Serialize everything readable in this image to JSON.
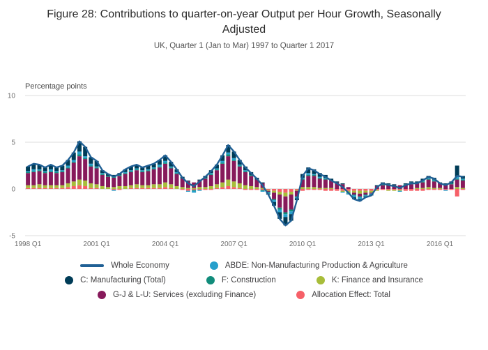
{
  "title": "Figure 28: Contributions to quarter-on-year Output per Hour Growth, Seasonally Adjusted",
  "subtitle": "UK, Quarter 1 (Jan to Mar) 1997 to Quarter 1 2017",
  "chart_data": {
    "type": "bar",
    "subtype": "stacked-bar-with-line-overlay",
    "title": "Figure 28: Contributions to quarter-on-year Output per Hour Growth, Seasonally Adjusted",
    "subtitle": "UK, Quarter 1 (Jan to Mar) 1997 to Quarter 1 2017",
    "ylabel": "Percentage points",
    "ylim": [
      -5,
      10
    ],
    "yticks": [
      10,
      5,
      0,
      -5
    ],
    "grid": "horizontal-light",
    "legend_position": "bottom",
    "categories": [
      "1998 Q1",
      "1998 Q2",
      "1998 Q3",
      "1998 Q4",
      "1999 Q1",
      "1999 Q2",
      "1999 Q3",
      "1999 Q4",
      "2000 Q1",
      "2000 Q2",
      "2000 Q3",
      "2000 Q4",
      "2001 Q1",
      "2001 Q2",
      "2001 Q3",
      "2001 Q4",
      "2002 Q1",
      "2002 Q2",
      "2002 Q3",
      "2002 Q4",
      "2003 Q1",
      "2003 Q2",
      "2003 Q3",
      "2003 Q4",
      "2004 Q1",
      "2004 Q2",
      "2004 Q3",
      "2004 Q4",
      "2005 Q1",
      "2005 Q2",
      "2005 Q3",
      "2005 Q4",
      "2006 Q1",
      "2006 Q2",
      "2006 Q3",
      "2006 Q4",
      "2007 Q1",
      "2007 Q2",
      "2007 Q3",
      "2007 Q4",
      "2008 Q1",
      "2008 Q2",
      "2008 Q3",
      "2008 Q4",
      "2009 Q1",
      "2009 Q2",
      "2009 Q3",
      "2009 Q4",
      "2010 Q1",
      "2010 Q2",
      "2010 Q3",
      "2010 Q4",
      "2011 Q1",
      "2011 Q2",
      "2011 Q3",
      "2011 Q4",
      "2012 Q1",
      "2012 Q2",
      "2012 Q3",
      "2012 Q4",
      "2013 Q1",
      "2013 Q2",
      "2013 Q3",
      "2013 Q4",
      "2014 Q1",
      "2014 Q2",
      "2014 Q3",
      "2014 Q4",
      "2015 Q1",
      "2015 Q2",
      "2015 Q3",
      "2015 Q4",
      "2016 Q1",
      "2016 Q2",
      "2016 Q3",
      "2016 Q4",
      "2017 Q1"
    ],
    "xticks": [
      {
        "i": 0,
        "label": "1998 Q1"
      },
      {
        "i": 12,
        "label": "2001 Q1"
      },
      {
        "i": 24,
        "label": "2004 Q1"
      },
      {
        "i": 36,
        "label": "2007 Q1"
      },
      {
        "i": 48,
        "label": "2010 Q1"
      },
      {
        "i": 60,
        "label": "2013 Q1"
      },
      {
        "i": 72,
        "label": "2016 Q1"
      }
    ],
    "series": [
      {
        "name": "Allocation Effect: Total",
        "color": "#F66068",
        "values": [
          0.1,
          0.1,
          0.1,
          0.1,
          0.1,
          0.1,
          0.1,
          0.2,
          0.3,
          0.4,
          0.3,
          0.1,
          0.1,
          0.0,
          0.0,
          -0.1,
          -0.1,
          0.0,
          0.1,
          0.1,
          0.1,
          0.1,
          0.1,
          0.1,
          0.2,
          0.1,
          0.0,
          -0.1,
          -0.2,
          -0.1,
          -0.1,
          -0.1,
          -0.1,
          0.1,
          0.2,
          0.3,
          0.2,
          0.1,
          -0.1,
          -0.1,
          -0.1,
          -0.1,
          -0.1,
          -0.2,
          -0.3,
          -0.4,
          -0.3,
          -0.1,
          -0.2,
          -0.1,
          -0.1,
          -0.1,
          -0.2,
          -0.2,
          -0.2,
          -0.2,
          -0.2,
          -0.2,
          -0.2,
          -0.2,
          -0.2,
          -0.1,
          -0.1,
          -0.1,
          -0.1,
          -0.1,
          -0.2,
          -0.2,
          -0.2,
          -0.2,
          -0.1,
          -0.1,
          -0.1,
          -0.1,
          -0.1,
          -0.8,
          -0.1
        ]
      },
      {
        "name": "K: Finance and Insurance",
        "color": "#A8BD3A",
        "values": [
          0.3,
          0.3,
          0.4,
          0.3,
          0.3,
          0.3,
          0.3,
          0.4,
          0.5,
          0.6,
          0.6,
          0.5,
          0.4,
          0.3,
          0.2,
          0.2,
          0.3,
          0.3,
          0.3,
          0.4,
          0.3,
          0.3,
          0.4,
          0.4,
          0.5,
          0.4,
          0.3,
          0.2,
          0.1,
          0.1,
          0.2,
          0.2,
          0.3,
          0.4,
          0.5,
          0.7,
          0.6,
          0.5,
          0.4,
          0.3,
          0.2,
          0.1,
          -0.1,
          -0.2,
          -0.3,
          -0.4,
          -0.3,
          -0.1,
          0.2,
          0.2,
          0.2,
          0.1,
          0.1,
          0.1,
          0.0,
          -0.1,
          -0.2,
          -0.2,
          -0.3,
          -0.2,
          -0.2,
          -0.1,
          0.0,
          -0.1,
          -0.1,
          -0.1,
          0.0,
          0.0,
          0.1,
          0.1,
          0.2,
          0.1,
          0.1,
          0.0,
          0.0,
          0.2,
          0.1
        ]
      },
      {
        "name": "G-J & L-U: Services (excluding Finance)",
        "color": "#871A5B",
        "values": [
          1.3,
          1.4,
          1.4,
          1.3,
          1.4,
          1.3,
          1.4,
          1.6,
          2.0,
          2.5,
          2.3,
          1.8,
          1.7,
          1.2,
          1.1,
          1.0,
          1.1,
          1.3,
          1.4,
          1.5,
          1.4,
          1.5,
          1.6,
          1.8,
          2.0,
          1.7,
          1.3,
          0.9,
          0.7,
          0.6,
          0.7,
          0.9,
          1.2,
          1.5,
          2.0,
          2.5,
          2.2,
          1.8,
          1.4,
          1.1,
          0.8,
          0.5,
          -0.1,
          -0.7,
          -1.4,
          -1.7,
          -1.6,
          -0.6,
          0.8,
          1.2,
          1.2,
          1.0,
          0.9,
          0.8,
          0.7,
          0.5,
          0.2,
          -0.2,
          -0.3,
          -0.2,
          -0.1,
          0.3,
          0.4,
          0.4,
          0.4,
          0.4,
          0.4,
          0.5,
          0.5,
          0.6,
          0.8,
          0.7,
          0.5,
          0.5,
          0.5,
          0.8,
          0.8
        ]
      },
      {
        "name": "F: Construction",
        "color": "#118C7B",
        "values": [
          0.1,
          0.1,
          0.1,
          0.1,
          0.1,
          0.1,
          0.1,
          0.1,
          0.1,
          0.2,
          0.1,
          0.1,
          0.1,
          0.1,
          0.1,
          0.1,
          0.1,
          0.1,
          0.1,
          0.1,
          0.1,
          0.1,
          0.1,
          0.1,
          0.1,
          0.1,
          0.1,
          0.0,
          0.0,
          -0.1,
          0.0,
          0.1,
          0.1,
          0.1,
          0.1,
          0.2,
          0.1,
          0.1,
          0.1,
          0.1,
          0.0,
          -0.1,
          -0.1,
          -0.1,
          -0.2,
          -0.2,
          -0.2,
          -0.1,
          0.1,
          0.1,
          0.1,
          0.1,
          0.1,
          0.0,
          0.0,
          0.0,
          -0.1,
          -0.1,
          -0.1,
          -0.1,
          0.0,
          0.0,
          0.1,
          0.1,
          0.0,
          0.0,
          0.1,
          0.1,
          0.1,
          0.1,
          0.1,
          0.1,
          0.0,
          0.0,
          0.1,
          0.1,
          0.1
        ]
      },
      {
        "name": "ABDE: Non-Manufacturing Production & Agriculture",
        "color": "#27A0CC",
        "values": [
          0.1,
          0.2,
          0.1,
          0.1,
          0.2,
          0.1,
          0.1,
          0.2,
          0.2,
          0.3,
          0.2,
          0.2,
          0.1,
          0.1,
          0.0,
          -0.1,
          0.0,
          0.1,
          0.1,
          0.1,
          0.1,
          0.1,
          0.1,
          0.2,
          0.2,
          0.1,
          0.1,
          0.0,
          -0.1,
          -0.2,
          -0.1,
          0.0,
          0.1,
          0.1,
          0.2,
          0.2,
          0.2,
          0.1,
          0.1,
          0.0,
          0.0,
          -0.1,
          -0.1,
          -0.2,
          -0.3,
          -0.3,
          -0.3,
          -0.1,
          0.1,
          0.2,
          0.1,
          0.1,
          0.1,
          0.0,
          0.0,
          -0.1,
          -0.1,
          -0.2,
          -0.2,
          -0.1,
          -0.1,
          0.0,
          0.1,
          0.0,
          0.0,
          -0.1,
          0.0,
          0.1,
          0.0,
          0.1,
          0.1,
          0.1,
          0.0,
          -0.1,
          0.0,
          0.2,
          0.1
        ]
      },
      {
        "name": "C: Manufacturing (Total)",
        "color": "#003C57",
        "values": [
          0.5,
          0.6,
          0.5,
          0.4,
          0.5,
          0.4,
          0.5,
          0.6,
          0.8,
          1.1,
          1.0,
          0.7,
          0.6,
          0.3,
          0.2,
          0.2,
          0.2,
          0.3,
          0.4,
          0.4,
          0.3,
          0.4,
          0.4,
          0.5,
          0.6,
          0.5,
          0.3,
          0.2,
          0.1,
          0.0,
          0.1,
          0.2,
          0.3,
          0.4,
          0.6,
          0.8,
          0.7,
          0.5,
          0.4,
          0.3,
          0.2,
          0.1,
          -0.1,
          -0.4,
          -0.7,
          -0.9,
          -0.7,
          -0.2,
          0.4,
          0.6,
          0.5,
          0.4,
          0.3,
          0.2,
          0.1,
          0.1,
          0.0,
          -0.2,
          -0.2,
          -0.1,
          -0.1,
          0.1,
          0.1,
          0.1,
          0.1,
          0.0,
          0.1,
          0.1,
          0.1,
          0.2,
          0.2,
          0.2,
          0.1,
          0.1,
          0.2,
          1.2,
          0.3
        ]
      }
    ],
    "line_series": {
      "name": "Whole Economy",
      "color": "#206095",
      "values": [
        2.4,
        2.7,
        2.6,
        2.3,
        2.6,
        2.3,
        2.5,
        3.1,
        3.9,
        5.1,
        4.5,
        3.4,
        3.0,
        2.0,
        1.6,
        1.3,
        1.6,
        2.1,
        2.4,
        2.6,
        2.3,
        2.5,
        2.7,
        3.1,
        3.6,
        2.9,
        2.1,
        1.2,
        0.6,
        0.3,
        0.8,
        1.3,
        1.9,
        2.6,
        3.6,
        4.7,
        4.0,
        3.1,
        2.3,
        1.7,
        1.1,
        0.4,
        -0.6,
        -1.8,
        -3.2,
        -3.9,
        -3.4,
        -1.2,
        1.4,
        2.2,
        2.0,
        1.6,
        1.3,
        0.9,
        0.6,
        0.2,
        -0.4,
        -1.1,
        -1.3,
        -0.9,
        -0.7,
        0.2,
        0.6,
        0.4,
        0.3,
        0.1,
        0.4,
        0.6,
        0.6,
        0.9,
        1.3,
        1.1,
        0.6,
        0.4,
        0.7,
        1.4,
        1.3
      ]
    }
  },
  "legend_rows": [
    [
      {
        "label": "Whole Economy",
        "swatch": "line",
        "color": "#206095"
      },
      {
        "label": "ABDE: Non-Manufacturing Production & Agriculture",
        "swatch": "dot",
        "color": "#27A0CC"
      }
    ],
    [
      {
        "label": "C: Manufacturing (Total)",
        "swatch": "dot",
        "color": "#003C57"
      },
      {
        "label": "F: Construction",
        "swatch": "dot",
        "color": "#118C7B"
      },
      {
        "label": "K: Finance and Insurance",
        "swatch": "dot",
        "color": "#A8BD3A"
      }
    ],
    [
      {
        "label": "G-J & L-U: Services (excluding Finance)",
        "swatch": "dot",
        "color": "#871A5B"
      },
      {
        "label": "Allocation Effect: Total",
        "swatch": "dot",
        "color": "#F66068"
      }
    ]
  ]
}
